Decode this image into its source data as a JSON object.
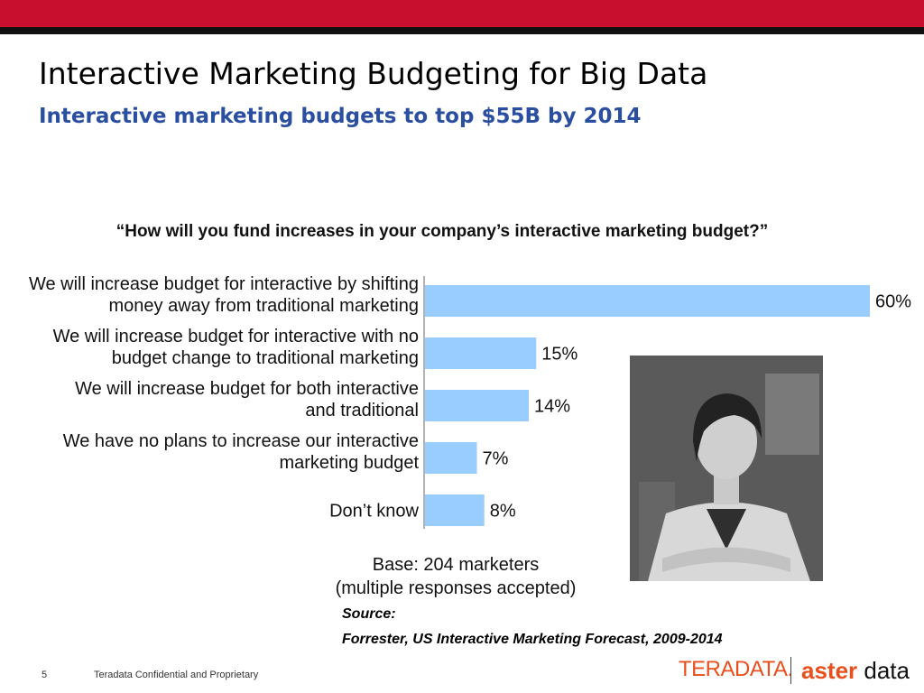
{
  "slide": {
    "title": "Interactive Marketing Budgeting for Big Data",
    "subtitle": "Interactive marketing budgets to top $55B by 2014"
  },
  "chart_data": {
    "type": "bar",
    "orientation": "horizontal",
    "title": "“How will you fund increases in your company’s interactive marketing budget?”",
    "categories": [
      [
        "We will increase budget for interactive by shifting",
        "money away from traditional marketing"
      ],
      [
        "We will increase budget for interactive with no",
        "budget change to traditional marketing"
      ],
      [
        "We will increase budget for both interactive",
        "and traditional"
      ],
      [
        "We have no plans to increase our interactive",
        "marketing budget"
      ],
      [
        "Don’t know"
      ]
    ],
    "values": [
      60,
      15,
      14,
      7,
      8
    ],
    "value_labels": [
      "60%",
      "15%",
      "14%",
      "7%",
      "8%"
    ],
    "unit": "%",
    "xlim": [
      0,
      60
    ],
    "bar_color": "#99ccff",
    "grid": false,
    "legend": "none",
    "base_note": [
      "Base: 204 marketers",
      "(multiple responses accepted)"
    ]
  },
  "source": {
    "label": "Source:",
    "text": "Forrester, US Interactive Marketing Forecast, 2009-2014"
  },
  "footer": {
    "page_number": "5",
    "text": "Teradata Confidential and Proprietary"
  },
  "logos": {
    "teradata": "TERADATA.",
    "aster": "aster",
    "data": "data"
  },
  "colors": {
    "top_bar": "#c8102e",
    "subtitle": "#2a4ea0",
    "teradata_orange": "#e8501e"
  }
}
